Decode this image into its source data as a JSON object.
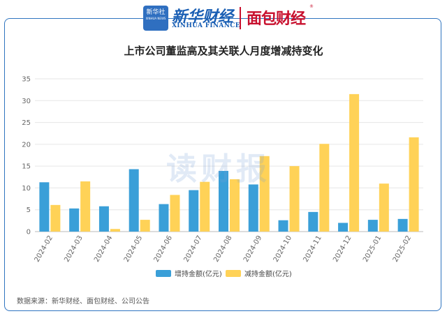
{
  "header": {
    "logo1_badge": "新华社",
    "logo1_badge_en": "XINHUA NEWS",
    "logo2_cn": "新华财经",
    "logo2_en": "XINHUA FINANCE",
    "logo3": "面包财经",
    "logo3_mark": "®"
  },
  "watermark": "读财报",
  "source": "数据来源：新华财经、面包财经、公司公告",
  "colors": {
    "increase": "#3a9fd8",
    "decrease": "#ffd257",
    "frame": "#2f74c0",
    "grid": "#e6e6e6"
  },
  "chart_data": {
    "type": "bar",
    "title": "上市公司董监高及其关联人月度增减持变化",
    "categories": [
      "2024-02",
      "2024-03",
      "2024-04",
      "2024-05",
      "2024-06",
      "2024-07",
      "2024-08",
      "2024-09",
      "2024-10",
      "2024-11",
      "2024-12",
      "2025-01",
      "2025-02"
    ],
    "series": [
      {
        "name": "增持金额(亿元)",
        "values": [
          11.3,
          5.3,
          5.8,
          14.3,
          6.3,
          9.5,
          13.9,
          10.8,
          2.6,
          4.5,
          2.0,
          2.7,
          2.9
        ]
      },
      {
        "name": "减持金额(亿元)",
        "values": [
          6.1,
          11.5,
          0.6,
          2.7,
          8.4,
          11.4,
          12.0,
          17.3,
          15.0,
          20.1,
          31.5,
          11.0,
          21.6
        ]
      }
    ],
    "yticks": [
      0,
      5,
      10,
      15,
      20,
      25,
      30,
      35
    ],
    "ylim": [
      0,
      35
    ],
    "grid": true,
    "legend": "bottom-center",
    "xlabel": "",
    "ylabel": ""
  }
}
